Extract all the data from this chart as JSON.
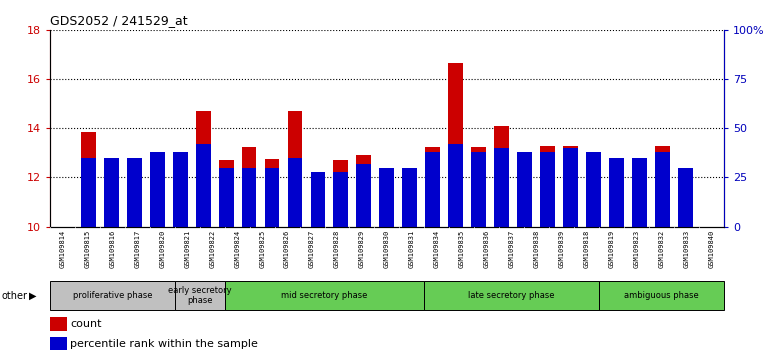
{
  "title": "GDS2052 / 241529_at",
  "samples": [
    "GSM109814",
    "GSM109815",
    "GSM109816",
    "GSM109817",
    "GSM109820",
    "GSM109821",
    "GSM109822",
    "GSM109824",
    "GSM109825",
    "GSM109826",
    "GSM109827",
    "GSM109828",
    "GSM109829",
    "GSM109830",
    "GSM109831",
    "GSM109834",
    "GSM109835",
    "GSM109836",
    "GSM109837",
    "GSM109838",
    "GSM109839",
    "GSM109818",
    "GSM109819",
    "GSM109823",
    "GSM109832",
    "GSM109833",
    "GSM109840"
  ],
  "count_values": [
    13.85,
    12.35,
    12.5,
    12.5,
    12.15,
    14.7,
    12.7,
    13.25,
    12.75,
    14.7,
    11.5,
    12.7,
    12.9,
    10.8,
    12.1,
    13.25,
    16.65,
    13.25,
    14.1,
    12.25,
    13.3,
    13.3,
    11.1,
    12.15,
    11.85,
    13.3,
    12.1
  ],
  "percentile_values": [
    35,
    35,
    35,
    38,
    38,
    42,
    30,
    30,
    30,
    35,
    28,
    28,
    32,
    30,
    30,
    38,
    42,
    38,
    40,
    38,
    38,
    40,
    38,
    35,
    35,
    38,
    30
  ],
  "phases": [
    {
      "name": "proliferative phase",
      "start": 0,
      "end": 5,
      "gray": true
    },
    {
      "name": "early secretory\nphase",
      "start": 5,
      "end": 7,
      "gray": true
    },
    {
      "name": "mid secretory phase",
      "start": 7,
      "end": 15,
      "gray": false
    },
    {
      "name": "late secretory phase",
      "start": 15,
      "end": 22,
      "gray": false
    },
    {
      "name": "ambiguous phase",
      "start": 22,
      "end": 27,
      "gray": false
    }
  ],
  "ylim_left": [
    10,
    18
  ],
  "ylim_right": [
    0,
    100
  ],
  "yticks_left": [
    10,
    12,
    14,
    16,
    18
  ],
  "yticks_right": [
    0,
    25,
    50,
    75,
    100
  ],
  "bar_color_count": "#cc0000",
  "bar_color_pct": "#0000cc",
  "left_tick_color": "#cc0000",
  "right_tick_color": "#0000bb",
  "gray_phase_color": "#c0c0c0",
  "green_phase_color": "#66cc55",
  "xtick_bg_color": "#c0c0c0"
}
